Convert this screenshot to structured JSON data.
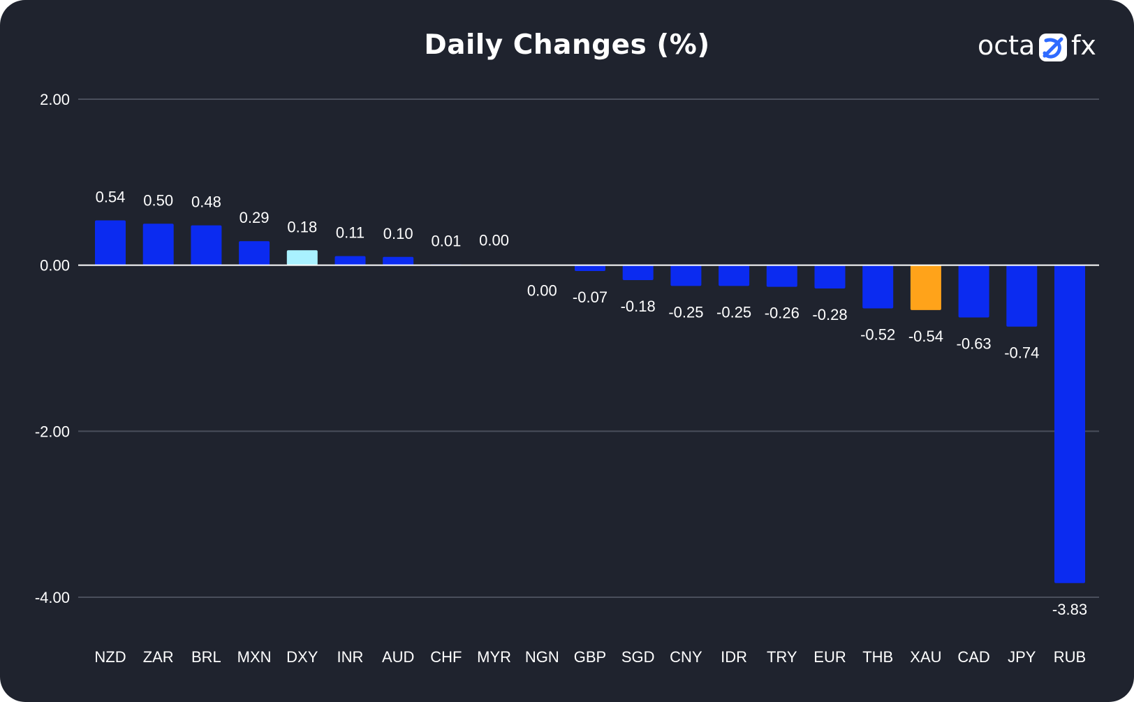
{
  "chart_data": {
    "type": "bar",
    "title": "Daily Changes (%)",
    "xlabel": "",
    "ylabel": "",
    "ylim": [
      -4.0,
      2.0
    ],
    "yticks": [
      2.0,
      0.0,
      -2.0,
      -4.0
    ],
    "ytick_labels": [
      "2.00",
      "0.00",
      "-2.00",
      "-4.00"
    ],
    "grid": true,
    "legend": "none",
    "categories": [
      "NZD",
      "ZAR",
      "BRL",
      "MXN",
      "DXY",
      "INR",
      "AUD",
      "CHF",
      "MYR",
      "NGN",
      "GBP",
      "SGD",
      "CNY",
      "IDR",
      "TRY",
      "EUR",
      "THB",
      "XAU",
      "CAD",
      "JPY",
      "RUB"
    ],
    "values": [
      0.54,
      0.5,
      0.48,
      0.29,
      0.18,
      0.11,
      0.1,
      0.01,
      0.0,
      0.0,
      -0.07,
      -0.18,
      -0.25,
      -0.25,
      -0.26,
      -0.28,
      -0.52,
      -0.54,
      -0.63,
      -0.74,
      -3.83
    ],
    "value_labels": [
      "0.54",
      "0.50",
      "0.48",
      "0.29",
      "0.18",
      "0.11",
      "0.10",
      "0.01",
      "0.00",
      "0.00",
      "-0.07",
      "-0.18",
      "-0.25",
      "-0.25",
      "-0.26",
      "-0.28",
      "-0.52",
      "-0.54",
      "-0.63",
      "-0.74",
      "-3.83"
    ],
    "bar_colors": [
      "#0b2bf0",
      "#0b2bf0",
      "#0b2bf0",
      "#0b2bf0",
      "#a9f1ff",
      "#0b2bf0",
      "#0b2bf0",
      "#0b2bf0",
      "#0b2bf0",
      "#0b2bf0",
      "#0b2bf0",
      "#0b2bf0",
      "#0b2bf0",
      "#0b2bf0",
      "#0b2bf0",
      "#0b2bf0",
      "#0b2bf0",
      "#ffa31a",
      "#0b2bf0",
      "#0b2bf0",
      "#0b2bf0"
    ]
  },
  "brand": {
    "logo_left": "octa",
    "logo_right": "fx",
    "logo_badge_color": "#2f6bff"
  },
  "colors": {
    "background": "#1f232e",
    "gridline": "#4a4f5c",
    "zero_line": "#ffffff",
    "text": "#ffffff",
    "primary_bar": "#0b2bf0",
    "highlight_dxy": "#a9f1ff",
    "highlight_xau": "#ffa31a"
  }
}
